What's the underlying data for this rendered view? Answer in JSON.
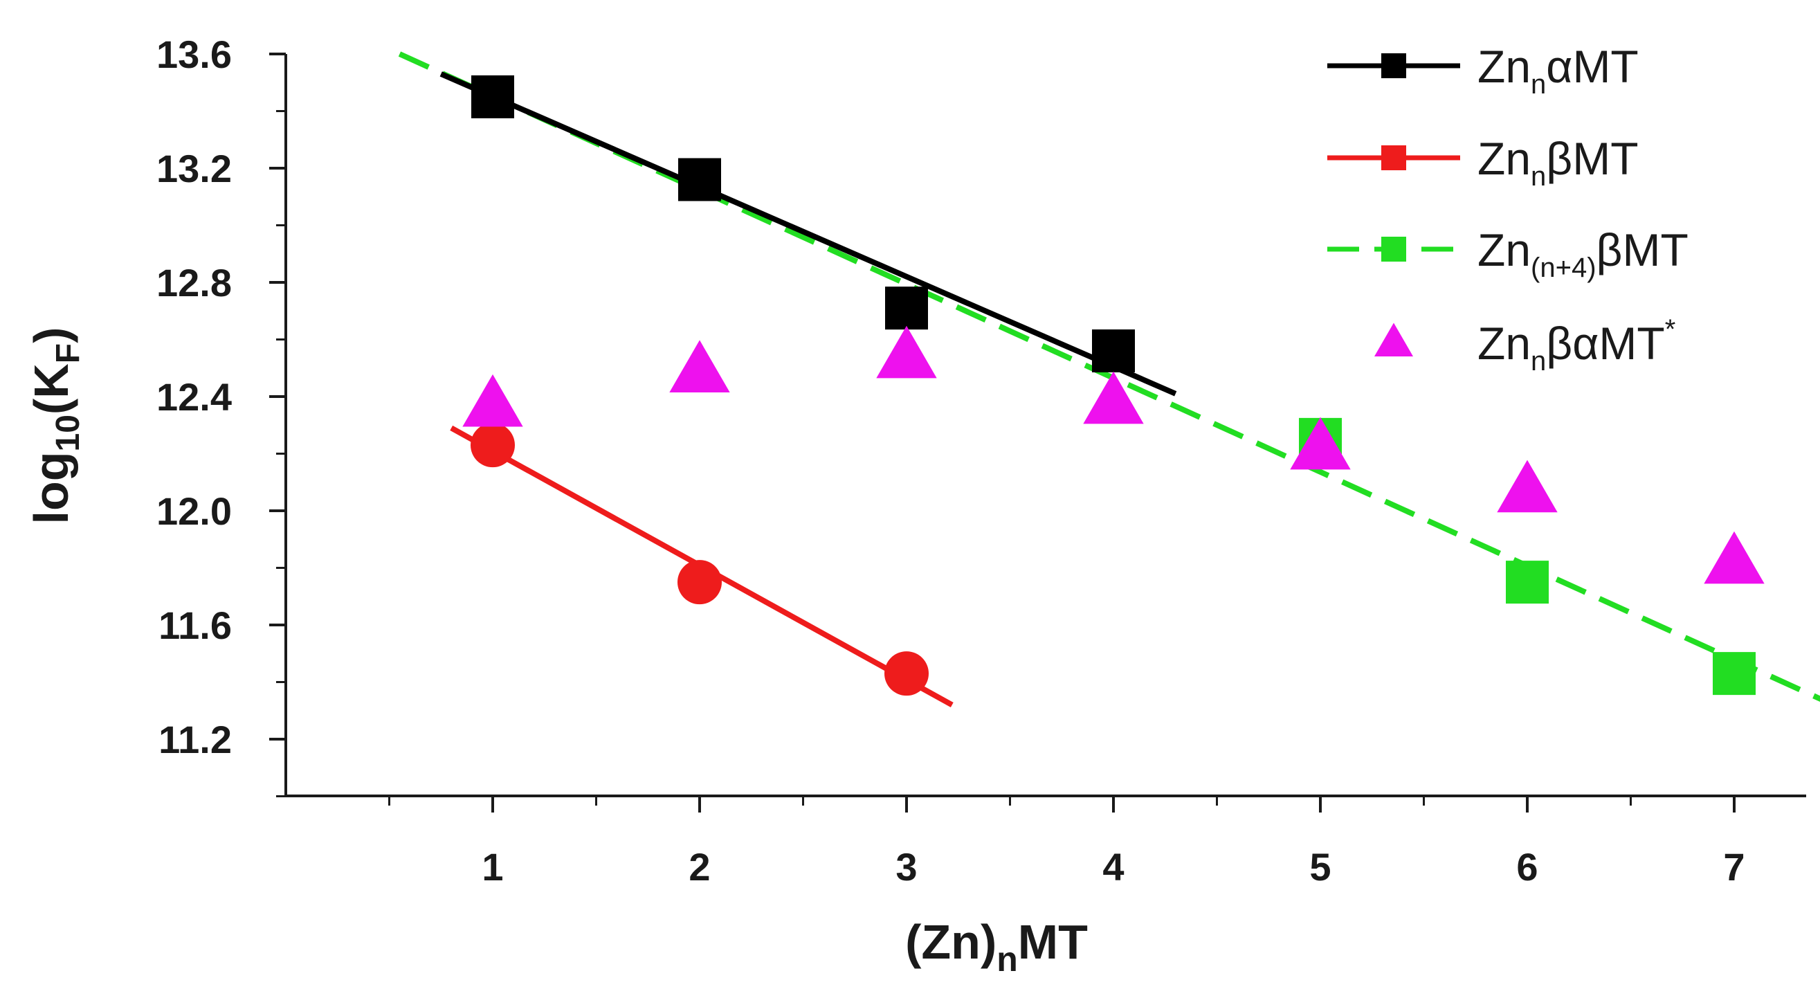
{
  "chart_data": {
    "type": "scatter",
    "xlabel": "(Zn)",
    "xlabel_sub": "n",
    "xlabel_tail": "MT",
    "ylabel": "log",
    "ylabel_sub1": "10",
    "ylabel_mid": "(K",
    "ylabel_sub2": "F",
    "ylabel_tail": ")",
    "xlim": [
      0,
      7.4
    ],
    "ylim": [
      11.0,
      13.6
    ],
    "xticks": [
      1,
      2,
      3,
      4,
      5,
      6,
      7
    ],
    "xticks_minor": [
      0.5,
      1.5,
      2.5,
      3.5,
      4.5,
      5.5,
      6.5
    ],
    "yticks": [
      11.2,
      11.6,
      12.0,
      12.4,
      12.8,
      13.2,
      13.6
    ],
    "ytick_labels": [
      "11.2",
      "11.6",
      "12.0",
      "12.4",
      "12.8",
      "13.2",
      "13.6"
    ],
    "yticks_minor": [
      11.0,
      11.4,
      11.8,
      12.2,
      12.6,
      13.0,
      13.4
    ],
    "legend_position": "top-right",
    "series": [
      {
        "key": "zn-alpha-mt",
        "name": "Zn",
        "name_sub": "n",
        "name_tail": "αMT",
        "name_sup": "",
        "color": "#000000",
        "marker": "square",
        "line": "solid",
        "x": [
          1,
          2,
          3,
          4
        ],
        "y": [
          13.45,
          13.16,
          12.71,
          12.56
        ],
        "fit": {
          "x": [
            0.75,
            4.3
          ],
          "y": [
            13.53,
            12.41
          ]
        }
      },
      {
        "key": "zn-beta-mt",
        "name": "Zn",
        "name_sub": "n",
        "name_tail": "βMT",
        "name_sup": "",
        "color": "#ee1c1c",
        "marker": "circle",
        "legend_marker": "square",
        "line": "solid",
        "x": [
          1,
          2,
          3
        ],
        "y": [
          12.23,
          11.75,
          11.43
        ],
        "fit": {
          "x": [
            0.8,
            3.22
          ],
          "y": [
            12.29,
            11.32
          ]
        }
      },
      {
        "key": "zn-n4-beta-mt",
        "name": "Zn",
        "name_sub": "(n+4)",
        "name_tail": "βMT",
        "name_sup": "",
        "color": "#22dd22",
        "marker": "square",
        "line": "dashed",
        "x": [
          5,
          6,
          7
        ],
        "y": [
          12.25,
          11.75,
          11.43
        ],
        "fit": {
          "x": [
            0.55,
            7.45
          ],
          "y": [
            13.6,
            11.33
          ]
        }
      },
      {
        "key": "zn-beta-alpha-mt",
        "name": "Zn",
        "name_sub": "n",
        "name_tail": "βαMT",
        "name_sup": "*",
        "color": "#ee11ee",
        "marker": "triangle",
        "line": "none",
        "x": [
          1,
          2,
          3,
          4,
          5,
          6,
          7
        ],
        "y": [
          12.37,
          12.49,
          12.54,
          12.38,
          12.22,
          12.07,
          11.82
        ]
      }
    ]
  }
}
